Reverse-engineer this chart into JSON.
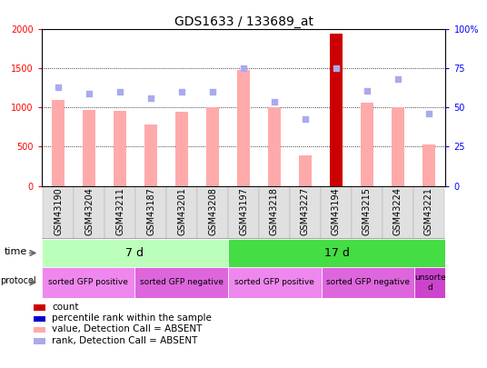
{
  "title": "GDS1633 / 133689_at",
  "samples": [
    "GSM43190",
    "GSM43204",
    "GSM43211",
    "GSM43187",
    "GSM43201",
    "GSM43208",
    "GSM43197",
    "GSM43218",
    "GSM43227",
    "GSM43194",
    "GSM43215",
    "GSM43224",
    "GSM43221"
  ],
  "bar_values": [
    1100,
    975,
    960,
    790,
    950,
    1000,
    1480,
    1000,
    390,
    1950,
    1060,
    1000,
    530
  ],
  "bar_colors": [
    "#ffaaaa",
    "#ffaaaa",
    "#ffaaaa",
    "#ffaaaa",
    "#ffaaaa",
    "#ffaaaa",
    "#ffaaaa",
    "#ffaaaa",
    "#ffaaaa",
    "#cc0000",
    "#ffaaaa",
    "#ffaaaa",
    "#ffaaaa"
  ],
  "rank_values": [
    63,
    59,
    60,
    56,
    60,
    60,
    75,
    54,
    43,
    75,
    61,
    68,
    46
  ],
  "rank_color": "#aaaaee",
  "ylim_left": [
    0,
    2000
  ],
  "ylim_right": [
    0,
    100
  ],
  "yticks_left": [
    0,
    500,
    1000,
    1500,
    2000
  ],
  "yticks_right": [
    0,
    25,
    50,
    75,
    100
  ],
  "left_tick_labels": [
    "0",
    "500",
    "1000",
    "1500",
    "2000"
  ],
  "right_tick_labels": [
    "0",
    "25",
    "50",
    "75",
    "100%"
  ],
  "time_groups": [
    {
      "label": "7 d",
      "start": 0,
      "end": 6,
      "color": "#bbffbb"
    },
    {
      "label": "17 d",
      "start": 6,
      "end": 13,
      "color": "#44dd44"
    }
  ],
  "protocol_groups": [
    {
      "label": "sorted GFP positive",
      "start": 0,
      "end": 3,
      "color": "#ee88ee"
    },
    {
      "label": "sorted GFP negative",
      "start": 3,
      "end": 6,
      "color": "#dd66dd"
    },
    {
      "label": "sorted GFP positive",
      "start": 6,
      "end": 9,
      "color": "#ee88ee"
    },
    {
      "label": "sorted GFP negative",
      "start": 9,
      "end": 12,
      "color": "#dd66dd"
    },
    {
      "label": "unsorte\nd",
      "start": 12,
      "end": 13,
      "color": "#cc44cc"
    }
  ],
  "legend_items": [
    {
      "label": "count",
      "color": "#cc0000"
    },
    {
      "label": "percentile rank within the sample",
      "color": "#0000cc"
    },
    {
      "label": "value, Detection Call = ABSENT",
      "color": "#ffaaaa"
    },
    {
      "label": "rank, Detection Call = ABSENT",
      "color": "#aaaaee"
    }
  ],
  "background_color": "#ffffff",
  "title_fontsize": 10,
  "tick_fontsize": 7,
  "label_fontsize": 8,
  "bar_width": 0.4
}
